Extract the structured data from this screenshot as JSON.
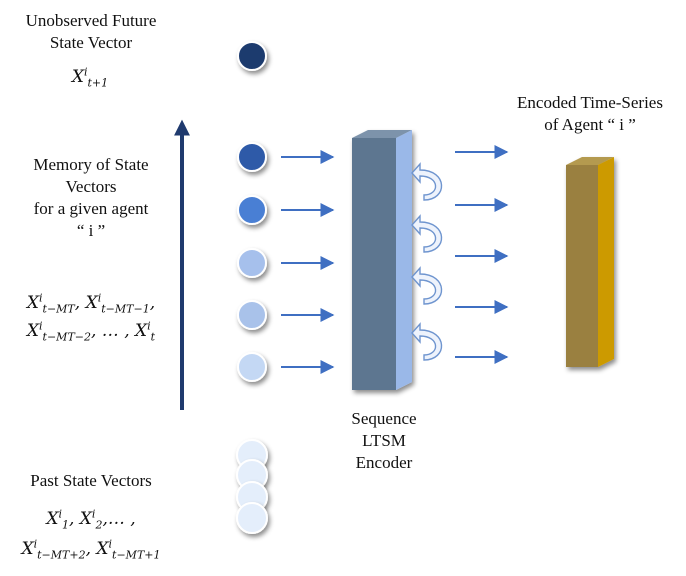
{
  "left_labels": {
    "future_title_line1": "Unobserved Future",
    "future_title_line2": "State Vector",
    "future_var": {
      "base": "X",
      "sup": "i",
      "sub": "t+1"
    },
    "memory_line1": "Memory of State",
    "memory_line2": "Vectors",
    "memory_line3": "for a given agent",
    "memory_line4": "“ i ”",
    "memory_vars_line1": [
      {
        "base": "X",
        "sup": "i",
        "sub": "t−MT",
        "after": ","
      },
      {
        "base": "X",
        "sup": "i",
        "sub": "t−MT−1",
        "after": ","
      }
    ],
    "memory_vars_line2": [
      {
        "base": "X",
        "sup": "i",
        "sub": "t−MT−2",
        "after": ", … ,"
      },
      {
        "base": "X",
        "sup": "i",
        "sub": "t",
        "after": ""
      }
    ],
    "past_title": "Past State Vectors",
    "past_vars_line1": [
      {
        "base": "X",
        "sup": "i",
        "sub": "1",
        "after": ","
      },
      {
        "base": "X",
        "sup": "i",
        "sub": "2",
        "after": ",… ,"
      }
    ],
    "past_vars_line2": [
      {
        "base": "X",
        "sup": "i",
        "sub": "t−MT+2",
        "after": ","
      },
      {
        "base": "X",
        "sup": "i",
        "sub": "t−MT+1",
        "after": ""
      }
    ]
  },
  "encoder_label_line1": "Sequence",
  "encoder_label_line2": "LTSM",
  "encoder_label_line3": "Encoder",
  "output_label_line1": "Encoded Time-Series",
  "output_label_line2": "of Agent “ i ”",
  "colors": {
    "future_node": "#1f3a6e",
    "memory_nodes": [
      "#2f5aa8",
      "#4a7fd4",
      "#a6c0ec",
      "#a9c2ea",
      "#c4d8f4"
    ],
    "past_nodes": "#e4eefb",
    "time_arrow": "#1f3a6e",
    "arrows": "#3f6fc2",
    "encoder_front": "#5d7690",
    "encoder_side": "#9ab8e8",
    "output_front": "#9a8040",
    "output_side": "#cc9a00"
  }
}
